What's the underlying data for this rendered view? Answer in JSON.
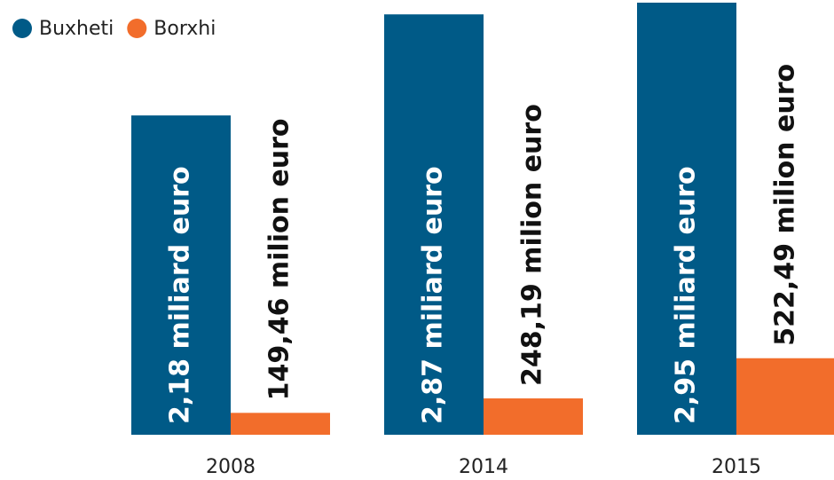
{
  "chart_data": {
    "type": "bar",
    "categories": [
      "2008",
      "2014",
      "2015"
    ],
    "series": [
      {
        "name": "Buxheti",
        "color": "#005a87",
        "values": [
          2180,
          2870,
          2950
        ],
        "value_labels": [
          "2,18 miliard euro",
          "2,87 miliard euro",
          "2,95 miliard euro"
        ]
      },
      {
        "name": "Borxhi",
        "color": "#f26d2b",
        "values": [
          149.46,
          248.19,
          522.49
        ],
        "value_labels": [
          "149,46 milion euro",
          "248,19 milion euro",
          "522,49 milion euro"
        ]
      }
    ],
    "legend": "top-left"
  }
}
